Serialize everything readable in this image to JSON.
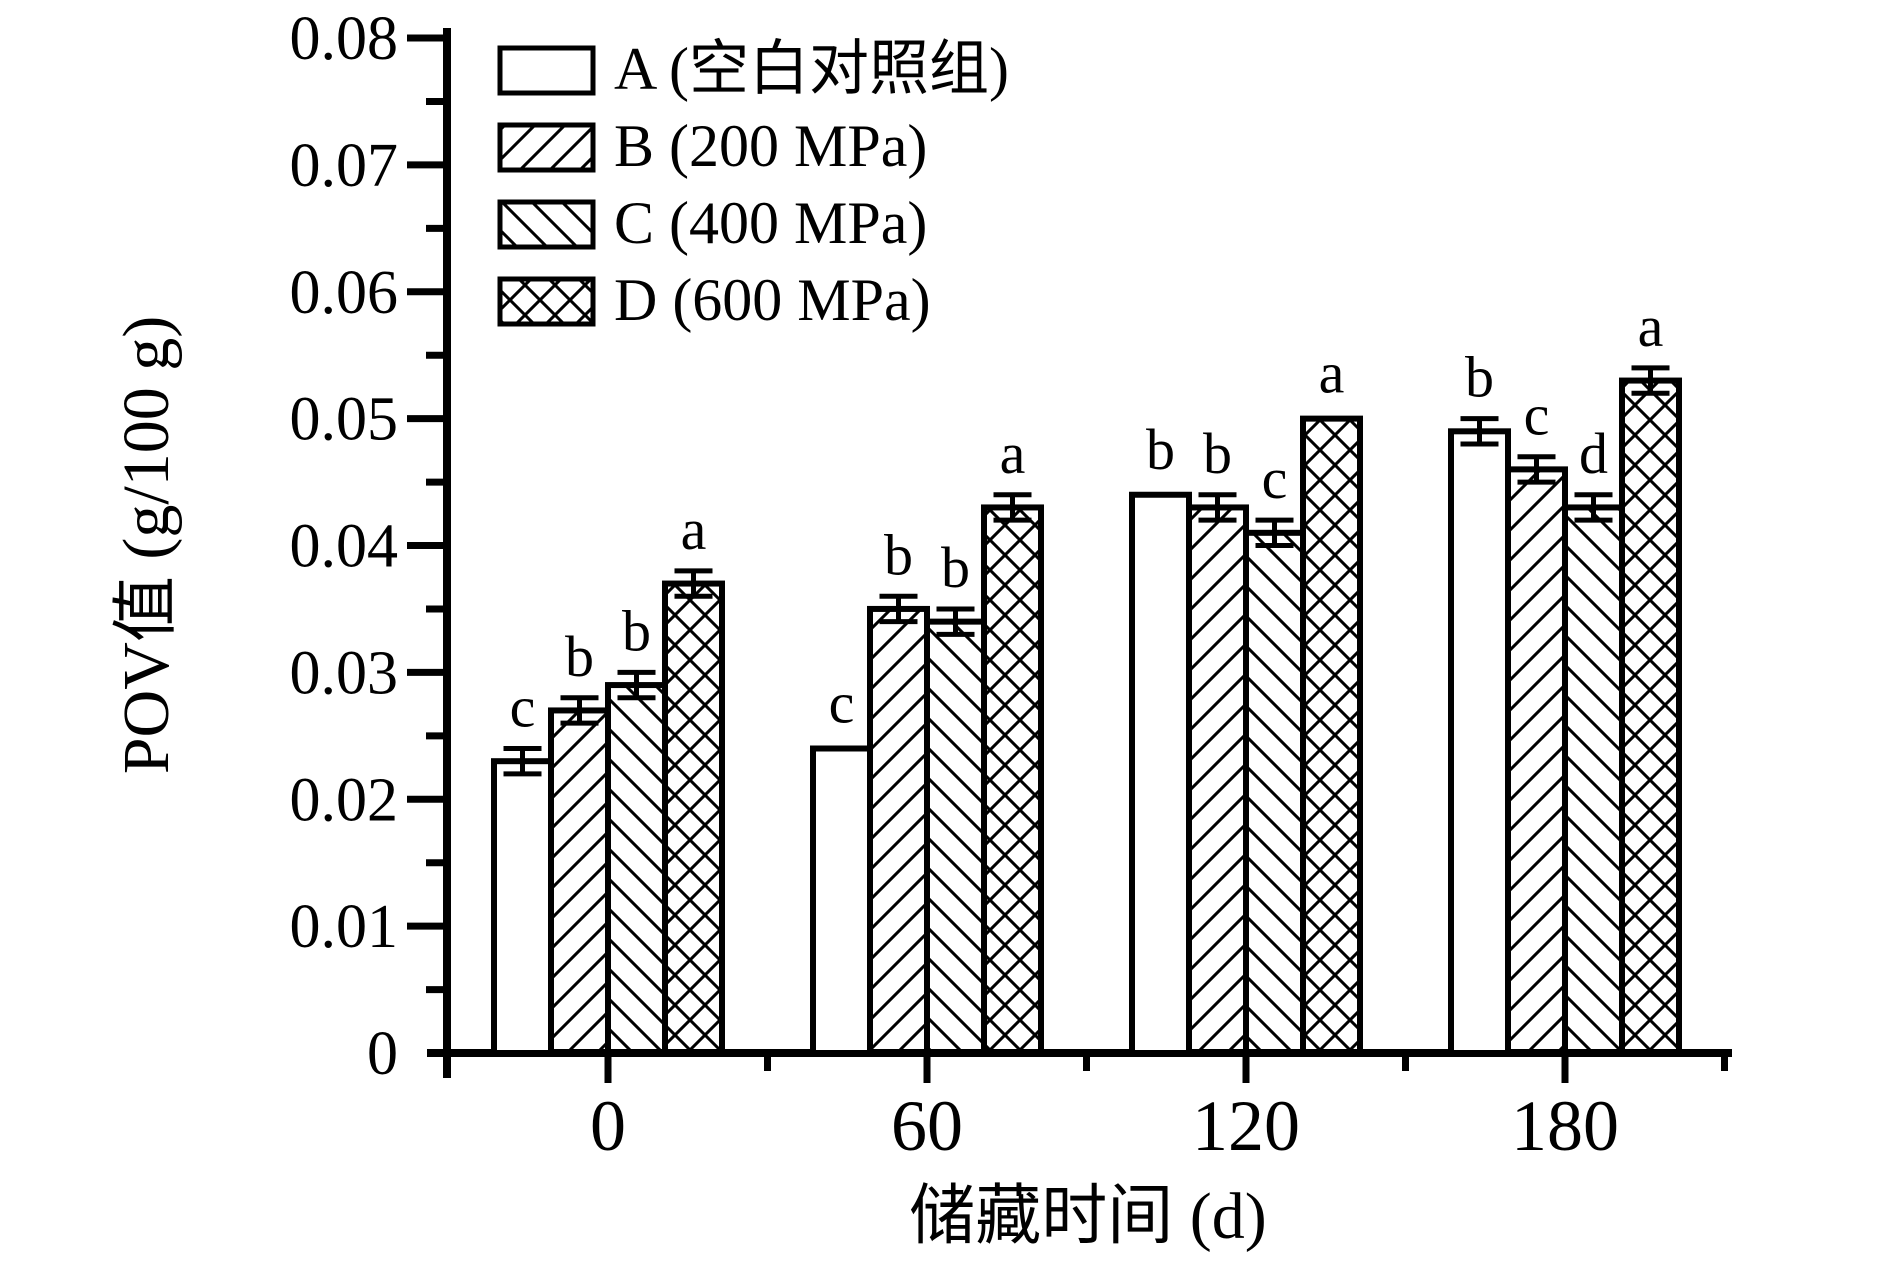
{
  "figure": {
    "background_color": "#ffffff",
    "ink_color": "#000000"
  },
  "chart_data": {
    "type": "bar",
    "title": "",
    "xlabel": "储藏时间 (d)",
    "ylabel": "POV值 (g/100 g)",
    "categories": [
      "0",
      "60",
      "120",
      "180"
    ],
    "ylim": [
      0,
      0.08
    ],
    "ytick_step": 0.01,
    "ytick_labels": [
      "0",
      "0.01",
      "0.02",
      "0.03",
      "0.04",
      "0.05",
      "0.06",
      "0.07",
      "0.08"
    ],
    "grid": false,
    "legend_position": "top-left-inside",
    "bar_style": "black-outline-hatched-on-white",
    "error_bar_style": "capped-I-beam",
    "series": [
      {
        "name": "A (空白对照组)",
        "hatch": "none",
        "values": [
          0.023,
          0.024,
          0.044,
          0.049
        ],
        "errors": [
          0.001,
          null,
          null,
          0.001
        ],
        "sig_letters": [
          "c",
          "c",
          "b",
          "b"
        ]
      },
      {
        "name": "B (200 MPa)",
        "hatch": "diagonal-forward",
        "values": [
          0.027,
          0.035,
          0.043,
          0.046
        ],
        "errors": [
          0.001,
          0.001,
          0.001,
          0.001
        ],
        "sig_letters": [
          "b",
          "b",
          "b",
          "c"
        ]
      },
      {
        "name": "C (400 MPa)",
        "hatch": "diagonal-backward",
        "values": [
          0.029,
          0.034,
          0.041,
          0.043
        ],
        "errors": [
          0.001,
          0.001,
          0.001,
          0.001
        ],
        "sig_letters": [
          "b",
          "b",
          "c",
          "d"
        ]
      },
      {
        "name": "D (600 MPa)",
        "hatch": "crosshatch",
        "values": [
          0.037,
          0.043,
          0.05,
          0.053
        ],
        "errors": [
          0.001,
          0.001,
          null,
          0.001
        ],
        "sig_letters": [
          "a",
          "a",
          "a",
          "a"
        ]
      }
    ]
  }
}
